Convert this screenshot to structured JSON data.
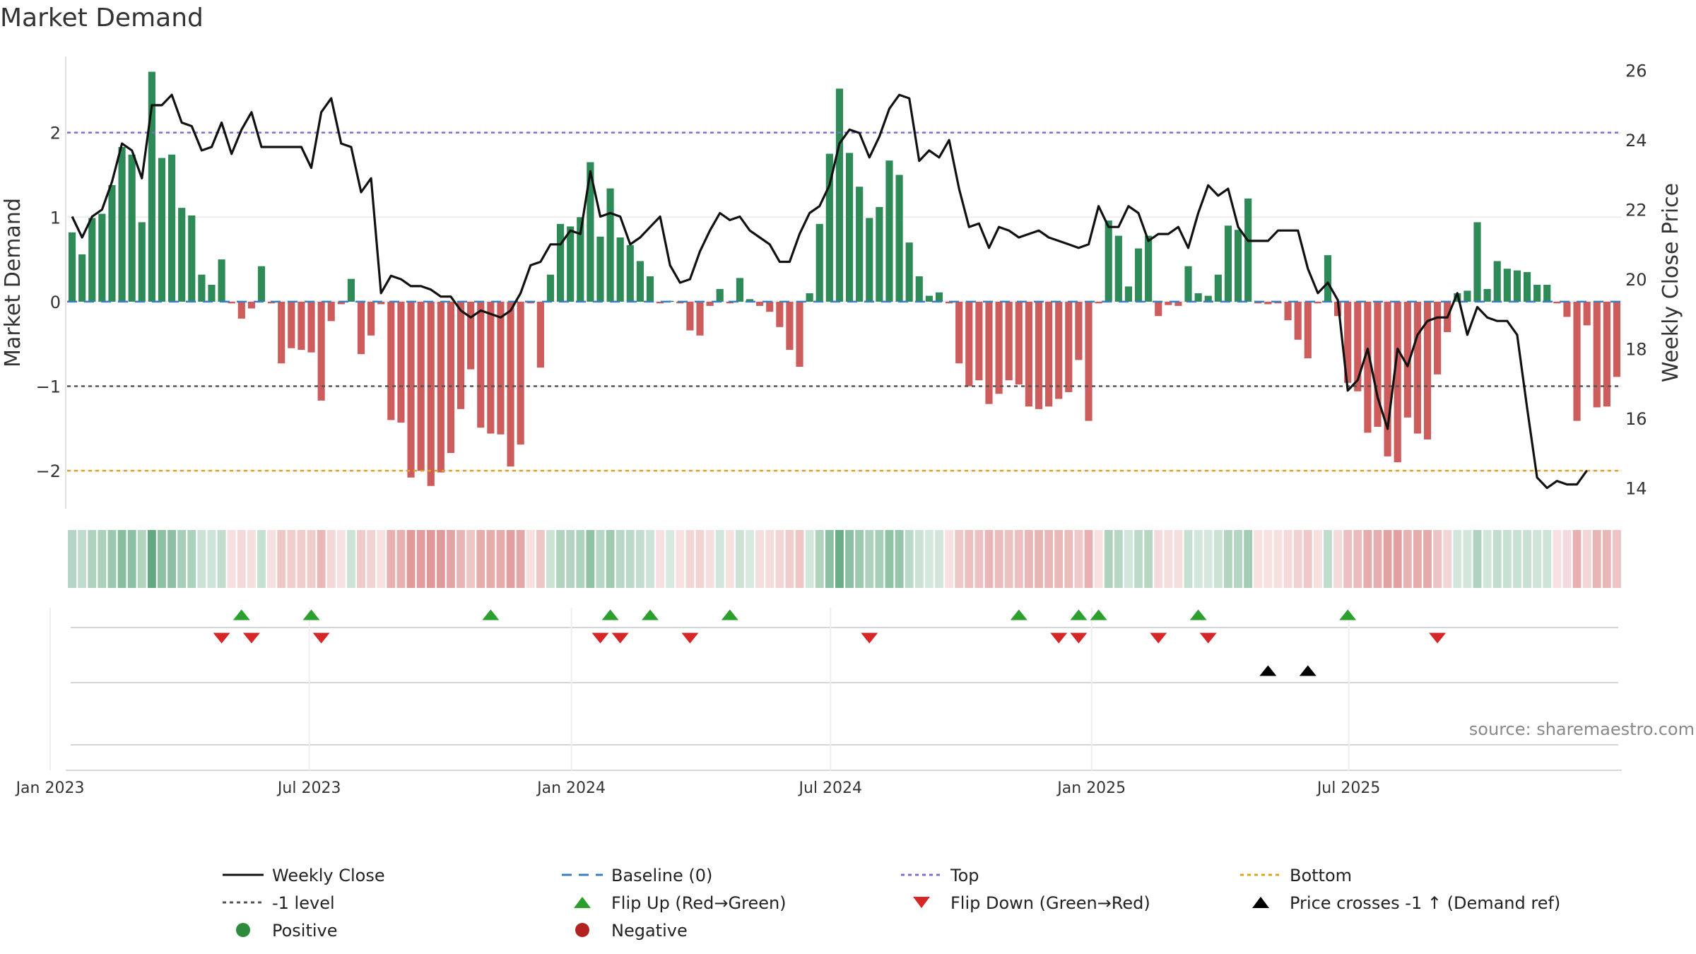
{
  "chart_data": {
    "type": "bar",
    "title": "Market Demand",
    "ylabel": "Market Demand",
    "y2label": "Weekly Close Price",
    "ylim": [
      -2.45,
      2.9
    ],
    "y2lim": [
      13.4,
      26.4
    ],
    "yticks": [
      {
        "v": 2,
        "label": "2"
      },
      {
        "v": 1,
        "label": "1"
      },
      {
        "v": 0,
        "label": "0"
      },
      {
        "v": -1,
        "label": "−1"
      },
      {
        "v": -2,
        "label": "−2"
      }
    ],
    "y2ticks": [
      {
        "v": 26,
        "label": "26"
      },
      {
        "v": 24,
        "label": "24"
      },
      {
        "v": 22,
        "label": "22"
      },
      {
        "v": 20,
        "label": "20"
      },
      {
        "v": 18,
        "label": "18"
      },
      {
        "v": 16,
        "label": "16"
      },
      {
        "v": 14,
        "label": "14"
      }
    ],
    "xticks": [
      {
        "i": 0,
        "label": "Jan 2023"
      },
      {
        "i": 26,
        "label": "Jul 2023"
      },
      {
        "i": 52.3,
        "label": "Jan 2024"
      },
      {
        "i": 78.3,
        "label": "Jul 2024"
      },
      {
        "i": 104.5,
        "label": "Jan 2025"
      },
      {
        "i": 130.3,
        "label": "Jul 2025"
      }
    ],
    "x_start_week_offset": -2.2,
    "levels": {
      "top": 2,
      "bottom": -2,
      "minus1": -1,
      "baseline": 0
    },
    "demand": [
      0.82,
      0.56,
      0.99,
      1.04,
      1.38,
      1.83,
      1.74,
      0.94,
      2.72,
      1.7,
      1.74,
      1.11,
      1.02,
      0.32,
      0.2,
      0.5,
      -0.02,
      -0.2,
      -0.08,
      0.42,
      -0.02,
      -0.73,
      -0.55,
      -0.57,
      -0.6,
      -1.17,
      -0.23,
      -0.03,
      0.27,
      -0.62,
      -0.4,
      -0.03,
      -1.4,
      -1.43,
      -2.08,
      -2.0,
      -2.18,
      -2.02,
      -1.79,
      -1.27,
      -0.8,
      -1.49,
      -1.56,
      -1.57,
      -1.95,
      -1.69,
      -0.02,
      -0.78,
      0.32,
      0.92,
      0.89,
      1.0,
      1.65,
      0.77,
      1.34,
      0.76,
      0.67,
      0.48,
      0.3,
      -0.02,
      0.01,
      -0.02,
      -0.34,
      -0.4,
      -0.05,
      0.15,
      -0.02,
      0.28,
      0.03,
      -0.05,
      -0.12,
      -0.3,
      -0.57,
      -0.77,
      0.1,
      0.92,
      1.75,
      2.52,
      1.76,
      1.36,
      0.99,
      1.12,
      1.67,
      1.5,
      0.7,
      0.3,
      0.07,
      0.11,
      -0.02,
      -0.73,
      -1.0,
      -0.93,
      -1.21,
      -1.09,
      -0.93,
      -0.98,
      -1.24,
      -1.27,
      -1.24,
      -1.15,
      -1.07,
      -0.69,
      -1.41,
      -0.02,
      0.96,
      0.78,
      0.18,
      0.63,
      0.78,
      -0.17,
      -0.04,
      -0.05,
      0.42,
      0.1,
      0.07,
      0.32,
      0.9,
      0.85,
      1.22,
      -0.02,
      -0.03,
      -0.02,
      -0.22,
      -0.45,
      -0.67,
      -0.02,
      0.55,
      -0.17,
      -0.96,
      -1.06,
      -1.55,
      -1.48,
      -1.83,
      -1.9,
      -1.37,
      -1.56,
      -1.63,
      -0.86,
      -0.36,
      0.1,
      0.13,
      0.94,
      0.15,
      0.48,
      0.39,
      0.37,
      0.35,
      0.2,
      0.2,
      -0.02,
      -0.18,
      -1.41,
      -0.28,
      -1.25,
      -1.24,
      -0.89
    ],
    "price": [
      21.8,
      21.2,
      21.8,
      22.0,
      22.8,
      23.9,
      23.7,
      22.9,
      25.0,
      25.0,
      25.3,
      24.5,
      24.4,
      23.7,
      23.8,
      24.5,
      23.6,
      24.3,
      24.8,
      23.8,
      23.8,
      23.8,
      23.8,
      23.8,
      23.2,
      24.8,
      25.2,
      23.9,
      23.8,
      22.5,
      22.9,
      19.6,
      20.1,
      20.0,
      19.8,
      19.8,
      19.7,
      19.5,
      19.5,
      19.1,
      18.9,
      19.1,
      19.0,
      18.9,
      19.1,
      19.6,
      20.4,
      20.5,
      21.0,
      21.0,
      21.4,
      21.3,
      23.1,
      21.8,
      21.9,
      21.8,
      21.0,
      21.2,
      21.5,
      21.8,
      20.4,
      19.9,
      20.0,
      20.8,
      21.4,
      21.9,
      21.7,
      21.8,
      21.4,
      21.2,
      21.0,
      20.5,
      20.5,
      21.3,
      21.9,
      22.1,
      22.7,
      23.9,
      24.3,
      24.2,
      23.5,
      24.1,
      24.9,
      25.3,
      25.2,
      23.4,
      23.7,
      23.5,
      24.0,
      22.6,
      21.5,
      21.6,
      20.9,
      21.5,
      21.4,
      21.2,
      21.3,
      21.4,
      21.2,
      21.1,
      21.0,
      20.9,
      21.0,
      22.1,
      21.5,
      21.5,
      22.1,
      21.9,
      21.1,
      21.3,
      21.3,
      21.5,
      20.9,
      21.9,
      22.7,
      22.4,
      22.6,
      21.5,
      21.1,
      21.1,
      21.1,
      21.4,
      21.4,
      21.4,
      20.3,
      19.6,
      19.9,
      19.4,
      16.8,
      17.1,
      18.0,
      16.6,
      15.7,
      18.0,
      17.5,
      18.4,
      18.8,
      18.9,
      18.9,
      19.6,
      18.4,
      19.2,
      18.9,
      18.8,
      18.8,
      18.4,
      16.3,
      14.3,
      14.0,
      14.2,
      14.1,
      14.1,
      14.5
    ],
    "heat_indices": "bar shade follows demand; no hidden values",
    "flip_up_idx": [
      17,
      24,
      42,
      54,
      58,
      66,
      95,
      101,
      103,
      113,
      128
    ],
    "flip_down_idx": [
      15,
      18,
      25,
      53,
      55,
      62,
      80,
      99,
      101,
      109,
      114,
      137
    ],
    "price_cross_idx": [
      120,
      124
    ],
    "legend": [
      {
        "label": "Weekly Close",
        "kind": "line",
        "color": "#111111",
        "dash": ""
      },
      {
        "label": "Baseline (0)",
        "kind": "line",
        "color": "#3b7dbf",
        "dash": "14,10"
      },
      {
        "label": "Top",
        "kind": "line",
        "color": "#7b6fd6",
        "dash": "5,5"
      },
      {
        "label": "Bottom",
        "kind": "line",
        "color": "#e0a020",
        "dash": "5,5"
      },
      {
        "label": "-1 level",
        "kind": "line",
        "color": "#555555",
        "dash": "5,5"
      },
      {
        "label": "Flip Up (Red→Green)",
        "kind": "tri-up",
        "color": "#2ca02c"
      },
      {
        "label": "Flip Down (Green→Red)",
        "kind": "tri-down",
        "color": "#d62728"
      },
      {
        "label": "Price crosses -1 ↑ (Demand ref)",
        "kind": "tri-up",
        "color": "#000000"
      },
      {
        "label": "Positive",
        "kind": "dot",
        "color": "#2e8b3e"
      },
      {
        "label": "Negative",
        "kind": "dot",
        "color": "#b22222"
      }
    ],
    "annotation": "source: sharemaestro.com"
  },
  "colors": {
    "positive_bar": "#2e8b57",
    "negative_bar": "#cd5c5c",
    "price_line": "#111111",
    "top": "#7b6fd6",
    "bottom": "#e0a020",
    "minus1": "#555555",
    "baseline": "#3b7dbf",
    "flip_up": "#2ca02c",
    "flip_down": "#d62728",
    "cross": "#000000"
  }
}
